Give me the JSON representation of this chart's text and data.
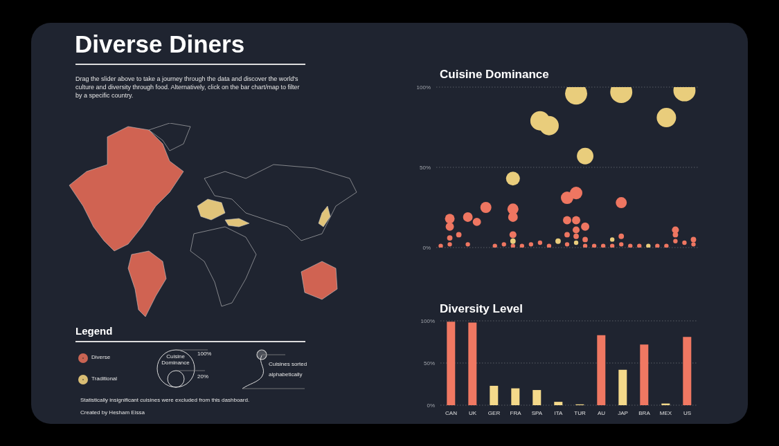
{
  "chart_data": [
    {
      "type": "other",
      "title": "Diverse Diners",
      "subtitle": "Drag the slider above to take a journey through the data and discover the world's culture and diversity through food. Alternatively, click on the bar chart/map to filter by a specific country.",
      "legend_title": "Legend",
      "annotations": [
        "Diverse",
        "Traditional",
        "Cuisine Dominance",
        "100%",
        "20%",
        "Cuisines sorted alphabetically",
        "Statistically insignificant cuisines were excluded from this dashboard.",
        "Created by Hesham Eissa"
      ]
    },
    {
      "type": "bubble",
      "title": "Cuisine Dominance",
      "categories": [
        null,
        null,
        null,
        null,
        null,
        null,
        null,
        null,
        null,
        null,
        null,
        null,
        null,
        null,
        null,
        null,
        null,
        null,
        null,
        null,
        null,
        null,
        null,
        null,
        null,
        null,
        null,
        null,
        null
      ],
      "ylim": [
        0,
        100
      ],
      "yticks": [
        {
          "value": 0,
          "label": "0%"
        },
        {
          "value": 50,
          "label": "50%"
        },
        {
          "value": 100,
          "label": "100%"
        }
      ],
      "grid": "y",
      "series": [
        {
          "color": "#e9cd7c",
          "values": [
            null,
            null,
            null,
            null,
            null,
            null,
            null,
            null,
            43,
            null,
            null,
            79,
            76,
            4,
            null,
            96,
            57,
            null,
            null,
            5,
            97,
            null,
            null,
            1,
            null,
            81,
            null,
            98,
            null
          ],
          "sizes": [
            null,
            null,
            null,
            null,
            null,
            null,
            null,
            null,
            0.39,
            null,
            null,
            0.77,
            0.77,
            0.06,
            null,
            1,
            0.56,
            null,
            null,
            0.04,
            1,
            null,
            null,
            0.04,
            null,
            0.77,
            null,
            1,
            null
          ]
        },
        {
          "color": "#ee7661",
          "values": [
            1,
            18,
            8,
            19,
            16,
            25,
            1,
            2,
            24,
            1,
            2,
            3,
            1,
            null,
            31,
            34,
            13,
            1,
            1,
            1,
            28,
            1,
            1,
            null,
            1,
            1,
            11,
            3,
            5
          ],
          "sizes": [
            0.04,
            0.19,
            0.06,
            0.19,
            0.14,
            0.25,
            0.04,
            0.04,
            0.25,
            0.04,
            0.04,
            0.04,
            0.04,
            null,
            0.32,
            0.32,
            0.14,
            0.04,
            0.04,
            0.04,
            0.25,
            0.04,
            0.04,
            null,
            0.04,
            0.04,
            0.1,
            0.04,
            0.06
          ]
        },
        {
          "color": "#ee7661",
          "values": [
            null,
            13,
            null,
            2,
            null,
            null,
            null,
            null,
            19,
            null,
            null,
            null,
            null,
            null,
            17,
            17,
            5,
            null,
            null,
            null,
            7,
            null,
            null,
            null,
            null,
            null,
            8,
            null,
            2
          ],
          "sizes": [
            null,
            0.14,
            null,
            0.04,
            null,
            null,
            null,
            null,
            0.19,
            null,
            null,
            null,
            null,
            null,
            0.14,
            0.14,
            0.06,
            null,
            null,
            null,
            0.06,
            null,
            null,
            null,
            null,
            null,
            0.06,
            null,
            0.04
          ]
        },
        {
          "color": "#ee7661",
          "values": [
            null,
            6,
            null,
            null,
            null,
            null,
            null,
            null,
            8,
            null,
            null,
            null,
            null,
            null,
            8,
            11,
            1,
            null,
            null,
            null,
            2,
            null,
            null,
            null,
            null,
            null,
            4,
            null,
            null
          ],
          "sizes": [
            null,
            0.06,
            null,
            null,
            null,
            null,
            null,
            null,
            0.1,
            null,
            null,
            null,
            null,
            null,
            0.06,
            0.1,
            0.04,
            null,
            null,
            null,
            0.04,
            null,
            null,
            null,
            null,
            null,
            0.04,
            null,
            null
          ]
        },
        {
          "color": "#ee7661",
          "values": [
            null,
            2,
            null,
            null,
            null,
            null,
            null,
            null,
            1,
            null,
            null,
            null,
            null,
            null,
            2,
            7,
            null,
            null,
            null,
            null,
            null,
            null,
            null,
            null,
            null,
            null,
            null,
            null,
            null
          ],
          "sizes": [
            null,
            0.04,
            null,
            null,
            null,
            null,
            null,
            null,
            0.04,
            null,
            null,
            null,
            null,
            null,
            0.04,
            0.06,
            null,
            null,
            null,
            null,
            null,
            null,
            null,
            null,
            null,
            null,
            null,
            null,
            null
          ]
        },
        {
          "color": "#e9cd7c",
          "values": [
            null,
            null,
            null,
            null,
            null,
            null,
            null,
            null,
            4,
            null,
            null,
            null,
            null,
            null,
            null,
            3,
            null,
            null,
            null,
            null,
            null,
            null,
            null,
            null,
            null,
            null,
            null,
            null,
            null
          ],
          "sizes": [
            null,
            null,
            null,
            null,
            null,
            null,
            null,
            null,
            0.06,
            null,
            null,
            null,
            null,
            null,
            null,
            0.04,
            null,
            null,
            null,
            null,
            null,
            null,
            null,
            null,
            null,
            null,
            null,
            null,
            null
          ]
        }
      ]
    },
    {
      "type": "bar",
      "title": "Diversity Level",
      "categories": [
        "CAN",
        "UK",
        "GER",
        "FRA",
        "SPA",
        "ITA",
        "TUR",
        "AU",
        "JAP",
        "BRA",
        "MEX",
        "US"
      ],
      "values": [
        99,
        98,
        23,
        20,
        18,
        4,
        1,
        83,
        42,
        72,
        2,
        81
      ],
      "colors": [
        "#f07862",
        "#f07862",
        "#f4d98a",
        "#f4d98a",
        "#f4d98a",
        "#f4d98a",
        "#f4d98a",
        "#f07862",
        "#f4d98a",
        "#f07862",
        "#f4d98a",
        "#f07862"
      ],
      "ylim": [
        0,
        100
      ],
      "yticks": [
        {
          "value": 0,
          "label": "0%"
        },
        {
          "value": 50,
          "label": "50%"
        },
        {
          "value": 100,
          "label": "100%"
        }
      ],
      "grid": "y"
    }
  ]
}
